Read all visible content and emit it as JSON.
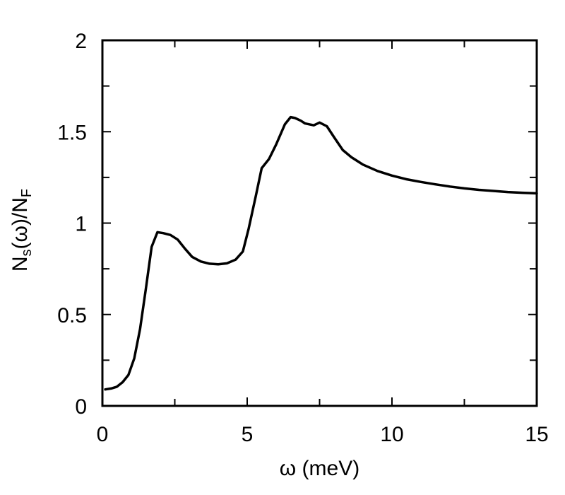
{
  "chart_data": {
    "type": "line",
    "xlabel": "ω (meV)",
    "ylabel": {
      "base": "N",
      "sub1": "s",
      "mid": "(ω)/N",
      "sub2": "F"
    },
    "xlim": [
      0,
      15
    ],
    "ylim": [
      0,
      2
    ],
    "xticks": [
      0,
      5,
      10,
      15
    ],
    "xtick_labels": [
      "0",
      "5",
      "10",
      "15"
    ],
    "yticks": [
      0,
      0.5,
      1,
      1.5,
      2
    ],
    "ytick_labels": [
      "0",
      "0.5",
      "1",
      "1.5",
      "2"
    ],
    "x_minor_ticks": [
      2.5,
      7.5,
      12.5
    ],
    "y_minor_ticks": [
      0.25,
      0.75,
      1.25,
      1.75
    ],
    "grid": false,
    "legend": "none",
    "line_color": "#000000",
    "series": [
      {
        "x": [
          0.1,
          0.3,
          0.5,
          0.7,
          0.9,
          1.1,
          1.3,
          1.5,
          1.7,
          1.9,
          2.1,
          2.35,
          2.6,
          2.85,
          3.1,
          3.4,
          3.7,
          4.0,
          4.3,
          4.6,
          4.85,
          5.05,
          5.3,
          5.5,
          5.75,
          6.0,
          6.3,
          6.5,
          6.65,
          6.85,
          7.0,
          7.3,
          7.5,
          7.75,
          8.0,
          8.3,
          8.6,
          9.0,
          9.5,
          10.0,
          10.5,
          11.0,
          11.5,
          12.0,
          12.5,
          13.0,
          13.5,
          14.0,
          14.5,
          15.0
        ],
        "y": [
          0.09,
          0.095,
          0.105,
          0.13,
          0.17,
          0.26,
          0.42,
          0.64,
          0.87,
          0.95,
          0.945,
          0.935,
          0.91,
          0.86,
          0.815,
          0.79,
          0.778,
          0.775,
          0.78,
          0.8,
          0.845,
          0.97,
          1.15,
          1.3,
          1.35,
          1.43,
          1.54,
          1.58,
          1.575,
          1.56,
          1.545,
          1.535,
          1.55,
          1.53,
          1.47,
          1.4,
          1.36,
          1.32,
          1.285,
          1.26,
          1.24,
          1.225,
          1.212,
          1.2,
          1.19,
          1.182,
          1.176,
          1.17,
          1.166,
          1.163
        ]
      }
    ]
  }
}
